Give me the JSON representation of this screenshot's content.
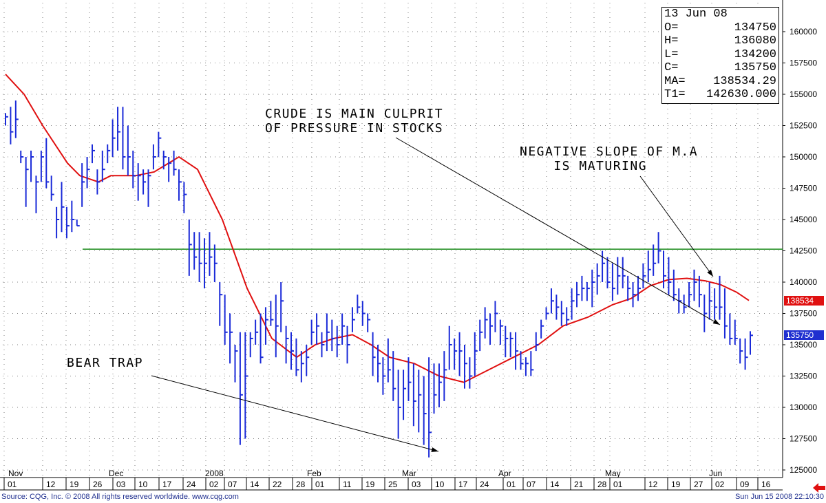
{
  "ohlc_box": {
    "date": "13 Jun 08",
    "rows": [
      {
        "label": "O=",
        "value": "134750"
      },
      {
        "label": "H=",
        "value": "136080"
      },
      {
        "label": "L=",
        "value": "134200"
      },
      {
        "label": "C=",
        "value": "135750"
      },
      {
        "label": "MA=",
        "value": "138534.29"
      },
      {
        "label": "T1=",
        "value": "142630.000"
      }
    ]
  },
  "annotations": {
    "bear_trap": "BEAR TRAP",
    "crude": "CRUDE IS MAIN CULPRIT\nOF PRESSURE IN STOCKS",
    "negative_slope": "NEGATIVE SLOPE OF M.A\n    IS MATURING"
  },
  "price_tags": {
    "ma": {
      "text": "138534",
      "color": "#e01010"
    },
    "close": {
      "text": "135750",
      "color": "#2030d0"
    }
  },
  "footer": {
    "source": "Source: CQG, Inc. © 2008 All rights reserved worldwide. www.cqg.com",
    "timestamp": "Sun Jun 15 2008 22:10:30"
  },
  "colors": {
    "bars": "#1a2ad8",
    "ma": "#e01010",
    "support": "#1a8a1a",
    "grid": "#808080",
    "footer_text": "#1f2f8f",
    "back_arrow": "#e01010"
  },
  "chart_data": {
    "type": "bar",
    "style": "OHLC price bars with moving average",
    "y_ticks": [
      125000,
      127500,
      130000,
      132500,
      135000,
      137500,
      140000,
      142500,
      145000,
      147500,
      150000,
      152500,
      155000,
      157500,
      160000
    ],
    "ylim": [
      124000,
      166000
    ],
    "support_level": 142630,
    "month_labels": [
      "Nov",
      "Dec",
      "2008",
      "Feb",
      "Mar",
      "Apr",
      "May",
      "Jun"
    ],
    "day_labels": [
      "01",
      "12",
      "19",
      "26",
      "03",
      "10",
      "17",
      "24",
      "02",
      "07",
      "14",
      "22",
      "28",
      "01",
      "11",
      "19",
      "25",
      "03",
      "10",
      "17",
      "24",
      "01",
      "07",
      "14",
      "21",
      "28",
      "01",
      "12",
      "19",
      "27",
      "02",
      "09",
      "16"
    ],
    "bars": [
      [
        153500,
        152500,
        153200
      ],
      [
        154000,
        151000,
        152000
      ],
      [
        154500,
        151500,
        153000
      ],
      [
        150500,
        149500,
        150000
      ],
      [
        150000,
        146000,
        149000
      ],
      [
        150500,
        148000,
        150000
      ],
      [
        148500,
        145500,
        148000
      ],
      [
        150500,
        148000,
        150000
      ],
      [
        151500,
        147500,
        148000
      ],
      [
        148500,
        146500,
        147000
      ],
      [
        146000,
        143500,
        145000
      ],
      [
        148000,
        144000,
        146000
      ],
      [
        146000,
        143500,
        144500
      ],
      [
        146500,
        144000,
        145000
      ],
      [
        145000,
        144500,
        144500
      ],
      [
        149500,
        146000,
        148000
      ],
      [
        150000,
        147500,
        149000
      ],
      [
        151000,
        149500,
        150500
      ],
      [
        149000,
        147000,
        148000
      ],
      [
        150500,
        148000,
        149000
      ],
      [
        151000,
        149500,
        150500
      ],
      [
        153000,
        150000,
        151500
      ],
      [
        154000,
        150500,
        152000
      ],
      [
        154000,
        149000,
        150000
      ],
      [
        152500,
        148500,
        150000
      ],
      [
        150500,
        147500,
        148500
      ],
      [
        149500,
        146500,
        148500
      ],
      [
        149000,
        147000,
        148000
      ],
      [
        149000,
        146000,
        148500
      ],
      [
        151000,
        149000,
        150000
      ],
      [
        152000,
        150000,
        151500
      ],
      [
        150500,
        149000,
        150000
      ],
      [
        150000,
        148000,
        149500
      ],
      [
        150500,
        148500,
        149000
      ],
      [
        149000,
        146500,
        148000
      ],
      [
        148000,
        145500,
        147000
      ],
      [
        145000,
        140500,
        143000
      ],
      [
        144000,
        141000,
        142000
      ],
      [
        144000,
        140000,
        141500
      ],
      [
        143500,
        139500,
        141500
      ],
      [
        144000,
        140500,
        142000
      ],
      [
        143000,
        140000,
        141500
      ],
      [
        140000,
        136500,
        139000
      ],
      [
        139000,
        135000,
        136000
      ],
      [
        137500,
        133500,
        136000
      ],
      [
        135000,
        132000,
        134500
      ],
      [
        136000,
        127000,
        131000
      ],
      [
        136000,
        127500,
        132500
      ],
      [
        136000,
        134000,
        135500
      ],
      [
        137000,
        135000,
        136000
      ],
      [
        137500,
        133500,
        134000
      ],
      [
        138000,
        135000,
        137000
      ],
      [
        138500,
        136500,
        137000
      ],
      [
        139000,
        134000,
        136500
      ],
      [
        140000,
        136000,
        138500
      ],
      [
        136500,
        133500,
        135500
      ],
      [
        136000,
        133000,
        134500
      ],
      [
        135500,
        132500,
        133000
      ],
      [
        134500,
        132000,
        133500
      ],
      [
        135000,
        132500,
        134000
      ],
      [
        137000,
        135000,
        136000
      ],
      [
        137500,
        135000,
        136500
      ],
      [
        136000,
        134000,
        135000
      ],
      [
        137500,
        134500,
        136000
      ],
      [
        137000,
        134500,
        135500
      ],
      [
        136500,
        134000,
        135000
      ],
      [
        137500,
        135000,
        136500
      ],
      [
        136500,
        133500,
        135000
      ],
      [
        138000,
        136000,
        137000
      ],
      [
        139000,
        137500,
        138000
      ],
      [
        138500,
        136500,
        137500
      ],
      [
        137500,
        136000,
        137000
      ],
      [
        136000,
        132500,
        134000
      ],
      [
        135000,
        132000,
        133500
      ],
      [
        134000,
        131000,
        132500
      ],
      [
        135500,
        132000,
        133000
      ],
      [
        134500,
        130500,
        131500
      ],
      [
        133000,
        127500,
        130000
      ],
      [
        133000,
        129000,
        131500
      ],
      [
        134000,
        130500,
        132000
      ],
      [
        133500,
        128500,
        130500
      ],
      [
        133000,
        128000,
        131000
      ],
      [
        132500,
        127000,
        129500
      ],
      [
        134000,
        126000,
        128000
      ],
      [
        133500,
        129500,
        131000
      ],
      [
        133500,
        130000,
        132000
      ],
      [
        134500,
        130500,
        133000
      ],
      [
        136500,
        133000,
        135000
      ],
      [
        135500,
        133000,
        134500
      ],
      [
        136000,
        132500,
        134500
      ],
      [
        135000,
        131500,
        133500
      ],
      [
        134000,
        131500,
        132500
      ],
      [
        136000,
        132500,
        134500
      ],
      [
        137000,
        134500,
        136000
      ],
      [
        138000,
        135500,
        137000
      ],
      [
        137500,
        135000,
        136500
      ],
      [
        138500,
        136000,
        137500
      ],
      [
        137000,
        135000,
        136500
      ],
      [
        136500,
        134000,
        135500
      ],
      [
        136000,
        134000,
        135500
      ],
      [
        136000,
        133000,
        134500
      ],
      [
        134500,
        133000,
        133500
      ],
      [
        134000,
        132500,
        133500
      ],
      [
        134500,
        132500,
        133000
      ],
      [
        136000,
        134500,
        135000
      ],
      [
        137000,
        135500,
        136500
      ],
      [
        138000,
        137000,
        137500
      ],
      [
        139500,
        137500,
        138500
      ],
      [
        139000,
        137000,
        138000
      ],
      [
        138500,
        136500,
        137500
      ],
      [
        138000,
        136500,
        137000
      ],
      [
        139500,
        137000,
        138500
      ],
      [
        140000,
        138000,
        139000
      ],
      [
        140500,
        138500,
        139500
      ],
      [
        140000,
        138500,
        139500
      ],
      [
        141000,
        138000,
        140000
      ],
      [
        141500,
        139000,
        140500
      ],
      [
        142500,
        140000,
        141500
      ],
      [
        142000,
        139500,
        140000
      ],
      [
        141500,
        138500,
        139500
      ],
      [
        142000,
        139000,
        140500
      ],
      [
        142000,
        139500,
        140500
      ],
      [
        140500,
        138500,
        139500
      ],
      [
        140000,
        138000,
        139000
      ],
      [
        140500,
        138500,
        139500
      ],
      [
        141500,
        139500,
        140500
      ],
      [
        142500,
        140000,
        141000
      ],
      [
        143000,
        140500,
        141500
      ],
      [
        144000,
        141500,
        142500
      ],
      [
        142500,
        139500,
        140500
      ],
      [
        142000,
        139000,
        140000
      ],
      [
        141000,
        138500,
        139000
      ],
      [
        139500,
        137500,
        138500
      ],
      [
        139000,
        137500,
        138000
      ],
      [
        140000,
        138000,
        139000
      ],
      [
        141000,
        138500,
        140000
      ],
      [
        140500,
        138000,
        139000
      ],
      [
        139000,
        136000,
        137500
      ],
      [
        140000,
        137000,
        138500
      ],
      [
        139500,
        137000,
        138000
      ],
      [
        140500,
        137000,
        138000
      ],
      [
        139500,
        135500,
        136500
      ],
      [
        137500,
        135000,
        135500
      ],
      [
        137000,
        135000,
        135500
      ],
      [
        135500,
        133500,
        134500
      ],
      [
        135500,
        133000,
        134000
      ],
      [
        136080,
        134200,
        135750
      ]
    ],
    "ma": [
      [
        0,
        156600
      ],
      [
        15,
        155000
      ],
      [
        30,
        152500
      ],
      [
        50,
        149500
      ],
      [
        60,
        148500
      ],
      [
        75,
        148000
      ],
      [
        85,
        148500
      ],
      [
        105,
        148500
      ],
      [
        120,
        148800
      ],
      [
        140,
        150000
      ],
      [
        155,
        149000
      ],
      [
        175,
        145000
      ],
      [
        195,
        139500
      ],
      [
        215,
        135500
      ],
      [
        235,
        134000
      ],
      [
        250,
        135000
      ],
      [
        265,
        135500
      ],
      [
        280,
        135800
      ],
      [
        295,
        135000
      ],
      [
        310,
        134000
      ],
      [
        330,
        133500
      ],
      [
        350,
        132500
      ],
      [
        370,
        132000
      ],
      [
        390,
        133000
      ],
      [
        410,
        134000
      ],
      [
        430,
        135000
      ],
      [
        450,
        136500
      ],
      [
        470,
        137200
      ],
      [
        490,
        138200
      ],
      [
        505,
        138700
      ],
      [
        520,
        139700
      ],
      [
        535,
        140200
      ],
      [
        550,
        140300
      ],
      [
        565,
        140100
      ],
      [
        577,
        139800
      ],
      [
        590,
        139200
      ],
      [
        600,
        138534
      ]
    ]
  }
}
